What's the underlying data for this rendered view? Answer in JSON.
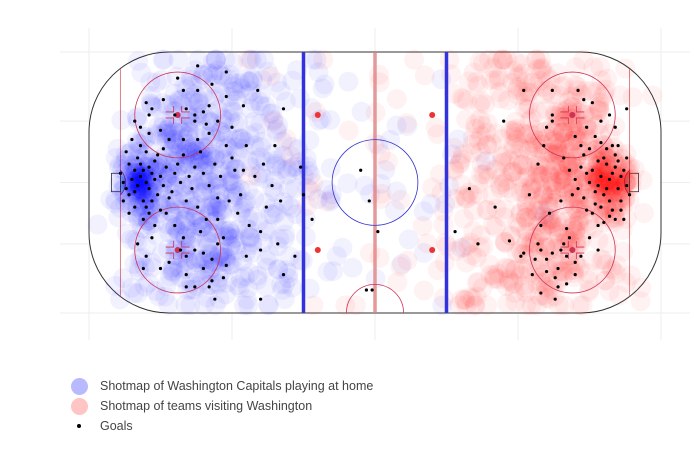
{
  "colors": {
    "home": "#0000ff",
    "away": "#ff0000",
    "goal": "#000000",
    "rink_line_blue": "#3333dd",
    "rink_line_red": "#e08080",
    "faceoff_red": "#cc3355",
    "crease": "#9ed6dc",
    "grid": "#eeeeee"
  },
  "legend": [
    {
      "name": "Shotmap of Washington Capitals playing at home",
      "marker": "circle",
      "color": "#b9b9ff"
    },
    {
      "name": "Shotmap of teams visiting Washington",
      "marker": "circle",
      "color": "#ffc4c4"
    },
    {
      "name": "Goals",
      "marker": "dot",
      "color": "#000000"
    }
  ],
  "chart_data": {
    "type": "scatter",
    "title": "",
    "xlabel": "",
    "ylabel": "",
    "xlim": [
      -100,
      100
    ],
    "ylim": [
      -42.5,
      42.5
    ],
    "grid": true,
    "legend_position": "bottom-left",
    "series": [
      {
        "name": "Shotmap of Washington Capitals playing at home",
        "marker": "circle",
        "color": "#0000ff",
        "opacity": 0.05,
        "clusters": [
          {
            "x": -82,
            "y": 0,
            "sx": 4,
            "sy": 6,
            "n": 150
          },
          {
            "x": -68,
            "y": 0,
            "sx": 9,
            "sy": 12,
            "n": 180
          },
          {
            "x": -62,
            "y": 20,
            "sx": 12,
            "sy": 9,
            "n": 100
          },
          {
            "x": -62,
            "y": -20,
            "sx": 12,
            "sy": 9,
            "n": 100
          },
          {
            "x": -42,
            "y": 0,
            "sx": 12,
            "sy": 20,
            "n": 140
          },
          {
            "x": -55,
            "y": 32,
            "sx": 16,
            "sy": 5,
            "n": 45
          },
          {
            "x": -55,
            "y": -32,
            "sx": 16,
            "sy": 5,
            "n": 45
          },
          {
            "x": -5,
            "y": 0,
            "sx": 28,
            "sy": 26,
            "n": 50
          }
        ]
      },
      {
        "name": "Shotmap of teams visiting Washington",
        "marker": "circle",
        "color": "#ff0000",
        "opacity": 0.05,
        "clusters": [
          {
            "x": 82,
            "y": 0,
            "sx": 4,
            "sy": 6,
            "n": 150
          },
          {
            "x": 68,
            "y": 0,
            "sx": 9,
            "sy": 12,
            "n": 180
          },
          {
            "x": 62,
            "y": 20,
            "sx": 12,
            "sy": 9,
            "n": 100
          },
          {
            "x": 62,
            "y": -20,
            "sx": 12,
            "sy": 9,
            "n": 100
          },
          {
            "x": 42,
            "y": 0,
            "sx": 12,
            "sy": 20,
            "n": 140
          },
          {
            "x": 55,
            "y": 32,
            "sx": 16,
            "sy": 5,
            "n": 45
          },
          {
            "x": 55,
            "y": -32,
            "sx": 16,
            "sy": 5,
            "n": 45
          },
          {
            "x": 5,
            "y": 0,
            "sx": 28,
            "sy": 26,
            "n": 50
          }
        ]
      },
      {
        "name": "Goals",
        "marker": "dot",
        "color": "#000000",
        "points": [
          [
            -82,
            2
          ],
          [
            -83,
            -1
          ],
          [
            -81,
            4
          ],
          [
            -84,
            -3
          ],
          [
            -80,
            0
          ],
          [
            -79,
            -2
          ],
          [
            -78,
            3
          ],
          [
            -82,
            6
          ],
          [
            -81,
            -6
          ],
          [
            -77,
            1
          ],
          [
            -76,
            -4
          ],
          [
            -79,
            5
          ],
          [
            -83,
            8
          ],
          [
            -80,
            -8
          ],
          [
            -75,
            2
          ],
          [
            -74,
            -1
          ],
          [
            -78,
            -6
          ],
          [
            -77,
            7
          ],
          [
            -85,
            1
          ],
          [
            -84,
            4
          ],
          [
            -80,
            10
          ],
          [
            -79,
            -10
          ],
          [
            -73,
            5
          ],
          [
            -72,
            -5
          ],
          [
            -76,
            9
          ],
          [
            -86,
            -4
          ],
          [
            -81,
            -12
          ],
          [
            -82,
            12
          ],
          [
            -70,
            3
          ],
          [
            -71,
            -3
          ],
          [
            -75,
            -9
          ],
          [
            -74,
            11
          ],
          [
            -68,
            0
          ],
          [
            -69,
            6
          ],
          [
            -66,
            -6
          ],
          [
            -65,
            2
          ],
          [
            -72,
            14
          ],
          [
            -70,
            -14
          ],
          [
            -77,
            -14
          ],
          [
            -79,
            16
          ],
          [
            -64,
            -2
          ],
          [
            -67,
            9
          ],
          [
            -63,
            5
          ],
          [
            -62,
            -8
          ],
          [
            -60,
            3
          ],
          [
            -58,
            -1
          ],
          [
            -61,
            10
          ],
          [
            -59,
            -12
          ],
          [
            -56,
            6
          ],
          [
            -55,
            -5
          ],
          [
            -82,
            18
          ],
          [
            -84,
            20
          ],
          [
            -79,
            22
          ],
          [
            -78,
            -18
          ],
          [
            -83,
            -20
          ],
          [
            -80,
            -24
          ],
          [
            -86,
            -10
          ],
          [
            -88,
            -6
          ],
          [
            -85,
            14
          ],
          [
            -87,
            10
          ],
          [
            -66,
            24
          ],
          [
            -63,
            22
          ],
          [
            -60,
            23
          ],
          [
            -58,
            25
          ],
          [
            -55,
            20
          ],
          [
            -66,
            -24
          ],
          [
            -63,
            -22
          ],
          [
            -60,
            -23
          ],
          [
            -57,
            -25
          ],
          [
            -55,
            -20
          ],
          [
            -67,
            30
          ],
          [
            -57,
            32
          ],
          [
            -52,
            28
          ],
          [
            -66,
            -30
          ],
          [
            -57,
            -32
          ],
          [
            -52,
            -27
          ],
          [
            -63,
            -34
          ],
          [
            -58,
            -34
          ],
          [
            -60,
            -28
          ],
          [
            -53,
            -31
          ],
          [
            -62,
            38
          ],
          [
            -52,
            36
          ],
          [
            -46,
            4
          ],
          [
            -47,
            -4
          ],
          [
            -50,
            8
          ],
          [
            -48,
            -10
          ],
          [
            -45,
            12
          ],
          [
            -44,
            -14
          ],
          [
            -42,
            2
          ],
          [
            -39,
            6
          ],
          [
            -38,
            -8
          ],
          [
            -36,
            -1
          ],
          [
            -40,
            -16
          ],
          [
            -35,
            12
          ],
          [
            -33,
            -6
          ],
          [
            -50,
            18
          ],
          [
            -46,
            25
          ],
          [
            -45,
            -24
          ],
          [
            -41,
            30
          ],
          [
            -40,
            -22
          ],
          [
            -34,
            -20
          ],
          [
            -32,
            -30
          ],
          [
            -28,
            -24
          ],
          [
            -32,
            24
          ],
          [
            -26,
            5
          ],
          [
            -25,
            -4
          ],
          [
            -74,
            27
          ],
          [
            -72,
            -26
          ],
          [
            -69,
            34
          ],
          [
            -66,
            -34
          ],
          [
            -56,
            -38
          ],
          [
            -40,
            -38
          ],
          [
            -78,
            24
          ],
          [
            -75,
            -28
          ],
          [
            -70,
            22
          ],
          [
            -68,
            -22
          ],
          [
            -88,
            0
          ],
          [
            -87,
            -2
          ],
          [
            -86,
            6
          ],
          [
            -84,
            -8
          ],
          [
            -55,
            -12
          ],
          [
            -52,
            12
          ],
          [
            -54,
            2
          ],
          [
            -51,
            -6
          ],
          [
            -49,
            4
          ],
          [
            -62,
            14
          ],
          [
            -61,
            -16
          ],
          [
            -73,
            -10
          ],
          [
            -75,
            17
          ],
          [
            -89,
            3
          ],
          [
            -53,
            -18
          ],
          [
            -62,
            30
          ],
          [
            -80,
            26
          ],
          [
            -81,
            -28
          ],
          [
            -67,
            -18
          ],
          [
            -58,
            16
          ],
          [
            82,
            1
          ],
          [
            81,
            -2
          ],
          [
            83,
            3
          ],
          [
            80,
            -4
          ],
          [
            84,
            5
          ],
          [
            79,
            2
          ],
          [
            78,
            -1
          ],
          [
            82,
            -6
          ],
          [
            81,
            6
          ],
          [
            77,
            -3
          ],
          [
            76,
            4
          ],
          [
            80,
            8
          ],
          [
            79,
            -8
          ],
          [
            83,
            -9
          ],
          [
            84,
            9
          ],
          [
            75,
            0
          ],
          [
            74,
            3
          ],
          [
            78,
            7
          ],
          [
            77,
            -7
          ],
          [
            85,
            -2
          ],
          [
            86,
            2
          ],
          [
            81,
            11
          ],
          [
            82,
            -11
          ],
          [
            73,
            -5
          ],
          [
            72,
            5
          ],
          [
            76,
            -10
          ],
          [
            75,
            11
          ],
          [
            80,
            -13
          ],
          [
            79,
            13
          ],
          [
            70,
            1
          ],
          [
            71,
            -2
          ],
          [
            85,
            7
          ],
          [
            86,
            -6
          ],
          [
            83,
            12
          ],
          [
            84,
            -12
          ],
          [
            68,
            4
          ],
          [
            69,
            -4
          ],
          [
            74,
            -9
          ],
          [
            73,
            9
          ],
          [
            78,
            -14
          ],
          [
            77,
            15
          ],
          [
            66,
            8
          ],
          [
            65,
            -6
          ],
          [
            87,
            4
          ],
          [
            88,
            -1
          ],
          [
            72,
            12
          ],
          [
            79,
            20
          ],
          [
            82,
            22
          ],
          [
            84,
            18
          ],
          [
            76,
            26
          ],
          [
            71,
            30
          ],
          [
            73,
            27
          ],
          [
            67,
            -24
          ],
          [
            70,
            -26
          ],
          [
            78,
            -22
          ],
          [
            62,
            22
          ],
          [
            60,
            -25
          ],
          [
            62,
            -23
          ],
          [
            65,
            -22
          ],
          [
            58,
            -22
          ],
          [
            57,
            -20
          ],
          [
            56,
            -25
          ],
          [
            60,
            18
          ],
          [
            62,
            30
          ],
          [
            64,
            -34
          ],
          [
            70,
            -30
          ],
          [
            72,
            -24
          ],
          [
            64,
            -28
          ],
          [
            68,
            -18
          ],
          [
            52,
            -23
          ],
          [
            75,
            -18
          ],
          [
            63,
            -31
          ],
          [
            67,
            -33
          ],
          [
            58,
            -36
          ],
          [
            55,
            -30
          ],
          [
            51,
            -24
          ],
          [
            60,
            -29
          ],
          [
            66,
            -20
          ],
          [
            85,
            12
          ],
          [
            86,
            -9
          ],
          [
            87,
            -12
          ],
          [
            88,
            8
          ],
          [
            89,
            -4
          ],
          [
            88,
            24
          ],
          [
            52,
            30
          ],
          [
            42,
            -8
          ],
          [
            33,
            -2
          ],
          [
            36,
            -20
          ],
          [
            28,
            -16
          ],
          [
            45,
            20
          ],
          [
            47,
            -19
          ],
          [
            63,
            -38
          ],
          [
            67,
            -15
          ],
          [
            70,
            15
          ],
          [
            74,
            18
          ],
          [
            58,
            -14
          ],
          [
            59,
            12
          ],
          [
            61,
            -10
          ],
          [
            57,
            6
          ],
          [
            54,
            -4
          ],
          [
            -5,
            4
          ],
          [
            -2,
            -6
          ],
          [
            1,
            -16
          ],
          [
            -3,
            -35
          ],
          [
            -22,
            -12
          ],
          [
            -1,
            -35
          ],
          [
            -63,
            20
          ],
          [
            -59,
            19
          ],
          [
            62,
            20
          ],
          [
            -67,
            14
          ]
        ]
      }
    ]
  }
}
